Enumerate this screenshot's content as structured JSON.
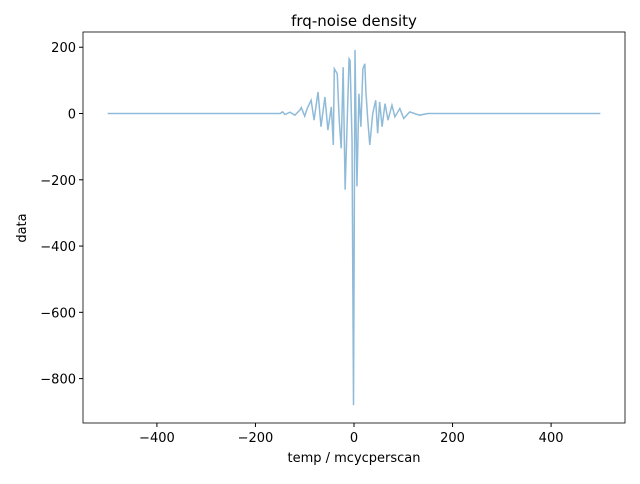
{
  "chart_data": {
    "type": "line",
    "title": "frq-noise density",
    "x_label": "temp / mcycperscan",
    "y_label": "data",
    "series": [
      {
        "color": "#1f77b4",
        "alpha": 0.5,
        "x": [
          -500,
          -150,
          -145,
          -140,
          -130,
          -120,
          -110,
          -107,
          -100,
          -95,
          -87,
          -81,
          -73,
          -67,
          -59,
          -53,
          -46,
          -42,
          -40,
          -34,
          -30,
          -26,
          -22,
          -18,
          -10,
          -8,
          -4,
          -1,
          2,
          6,
          10,
          14,
          18,
          22,
          24,
          28,
          32,
          38,
          44,
          48,
          52,
          57,
          63,
          69,
          77,
          83,
          93,
          101,
          113,
          133,
          150,
          500
        ],
        "values": [
          0,
          0,
          5,
          -3,
          4,
          -5,
          10,
          18,
          -8,
          15,
          40,
          -20,
          65,
          -40,
          50,
          -50,
          20,
          -95,
          135,
          120,
          -20,
          -105,
          140,
          -230,
          165,
          160,
          -80,
          -880,
          192,
          -220,
          60,
          -40,
          135,
          150,
          70,
          -20,
          -95,
          0,
          40,
          -60,
          35,
          -40,
          30,
          -20,
          25,
          -10,
          15,
          -15,
          5,
          -5,
          0,
          0
        ]
      }
    ],
    "xlim": [
      -550,
      550
    ],
    "xticks": [
      {
        "value": -400,
        "label": "−400"
      },
      {
        "value": -200,
        "label": "−200"
      },
      0,
      200,
      400
    ],
    "ylim": [
      -934,
      246
    ],
    "yticks": [
      200,
      0,
      {
        "value": -200,
        "label": "−200"
      },
      {
        "value": -400,
        "label": "−400"
      },
      {
        "value": -600,
        "label": "−600"
      },
      {
        "value": -800,
        "label": "−800"
      }
    ]
  }
}
